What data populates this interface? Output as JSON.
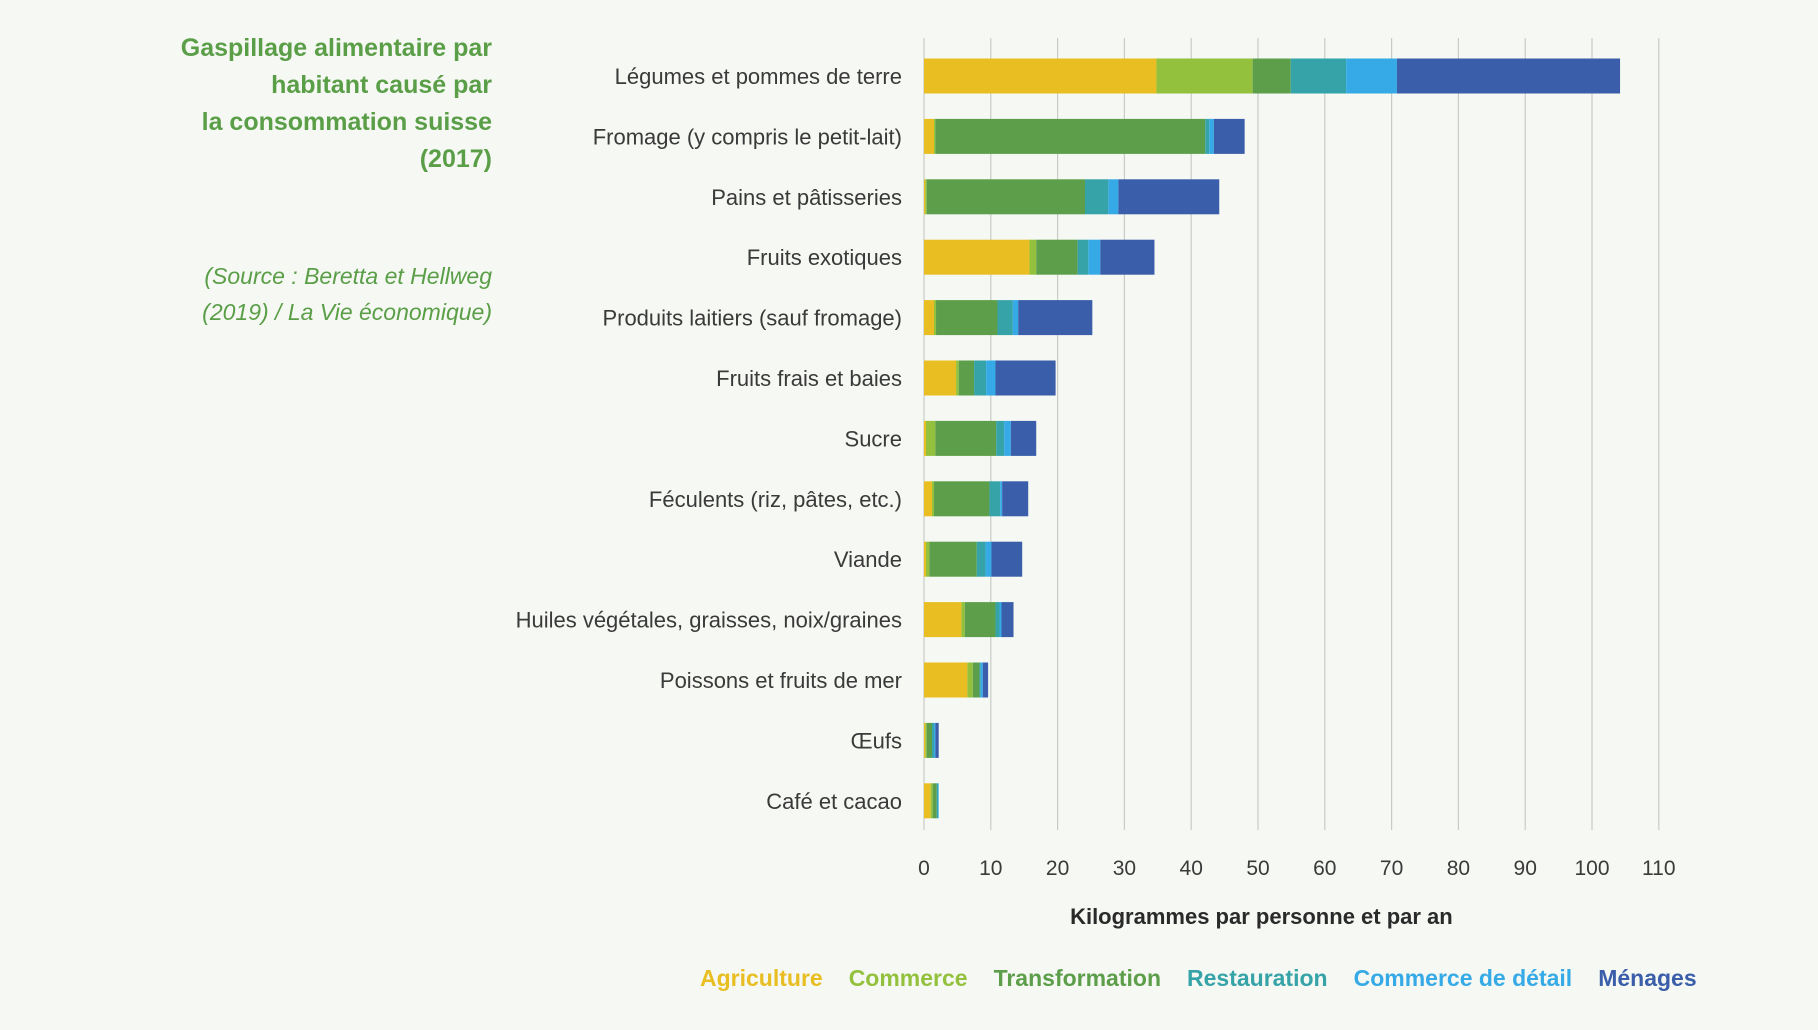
{
  "title": "Gaspillage alimentaire par\nhabitant causé par\nla consommation suisse\n(2017)",
  "source": "(Source : Beretta et Hellweg\n(2019) / La Vie économique)",
  "chart_data": {
    "type": "bar",
    "orientation": "horizontal",
    "stacked": true,
    "xlabel": "Kilogrammes par personne et par an",
    "xlim": [
      0,
      110
    ],
    "xticks": [
      0,
      10,
      20,
      30,
      40,
      50,
      60,
      70,
      80,
      90,
      100,
      110
    ],
    "grid": true,
    "legend_position": "bottom",
    "categories": [
      "Légumes et pommes de terre",
      "Fromage (y compris le petit-lait)",
      "Pains et pâtisseries",
      "Fruits exotiques",
      "Produits laitiers (sauf fromage)",
      "Fruits frais et baies",
      "Sucre",
      "Féculents (riz, pâtes, etc.)",
      "Viande",
      "Huiles végétales, graisses, noix/graines",
      "Poissons et fruits de mer",
      "Œufs",
      "Café et cacao"
    ],
    "series": [
      {
        "name": "Agriculture",
        "color": "#e8be22",
        "values": [
          34.8,
          1.5,
          0.2,
          15.8,
          1.5,
          4.8,
          0.3,
          1.2,
          0.3,
          5.6,
          6.5,
          0.2,
          1.0
        ]
      },
      {
        "name": "Commerce",
        "color": "#93c13e",
        "values": [
          14.4,
          0.2,
          0.2,
          1.0,
          0.3,
          0.4,
          1.4,
          0.3,
          0.5,
          0.5,
          0.8,
          0.2,
          0.3
        ]
      },
      {
        "name": "Transformation",
        "color": "#5c9e4a",
        "values": [
          5.7,
          40.4,
          23.7,
          6.2,
          9.2,
          2.3,
          9.1,
          8.3,
          7.1,
          4.6,
          1.0,
          0.8,
          0.6
        ]
      },
      {
        "name": "Restauration",
        "color": "#35a3a8",
        "values": [
          8.3,
          0.6,
          3.5,
          1.6,
          2.3,
          1.8,
          1.2,
          1.6,
          1.3,
          0.6,
          0.2,
          0.3,
          0.2
        ]
      },
      {
        "name": "Commerce de détail",
        "color": "#36aae6",
        "values": [
          7.6,
          0.7,
          1.5,
          1.8,
          0.8,
          1.4,
          1.0,
          0.3,
          0.9,
          0.3,
          0.3,
          0.2,
          0.1
        ]
      },
      {
        "name": "Ménages",
        "color": "#3a5ea9",
        "values": [
          33.4,
          4.6,
          15.1,
          8.1,
          11.1,
          9.0,
          3.8,
          3.9,
          4.6,
          1.8,
          0.8,
          0.5,
          0.0
        ]
      }
    ]
  }
}
